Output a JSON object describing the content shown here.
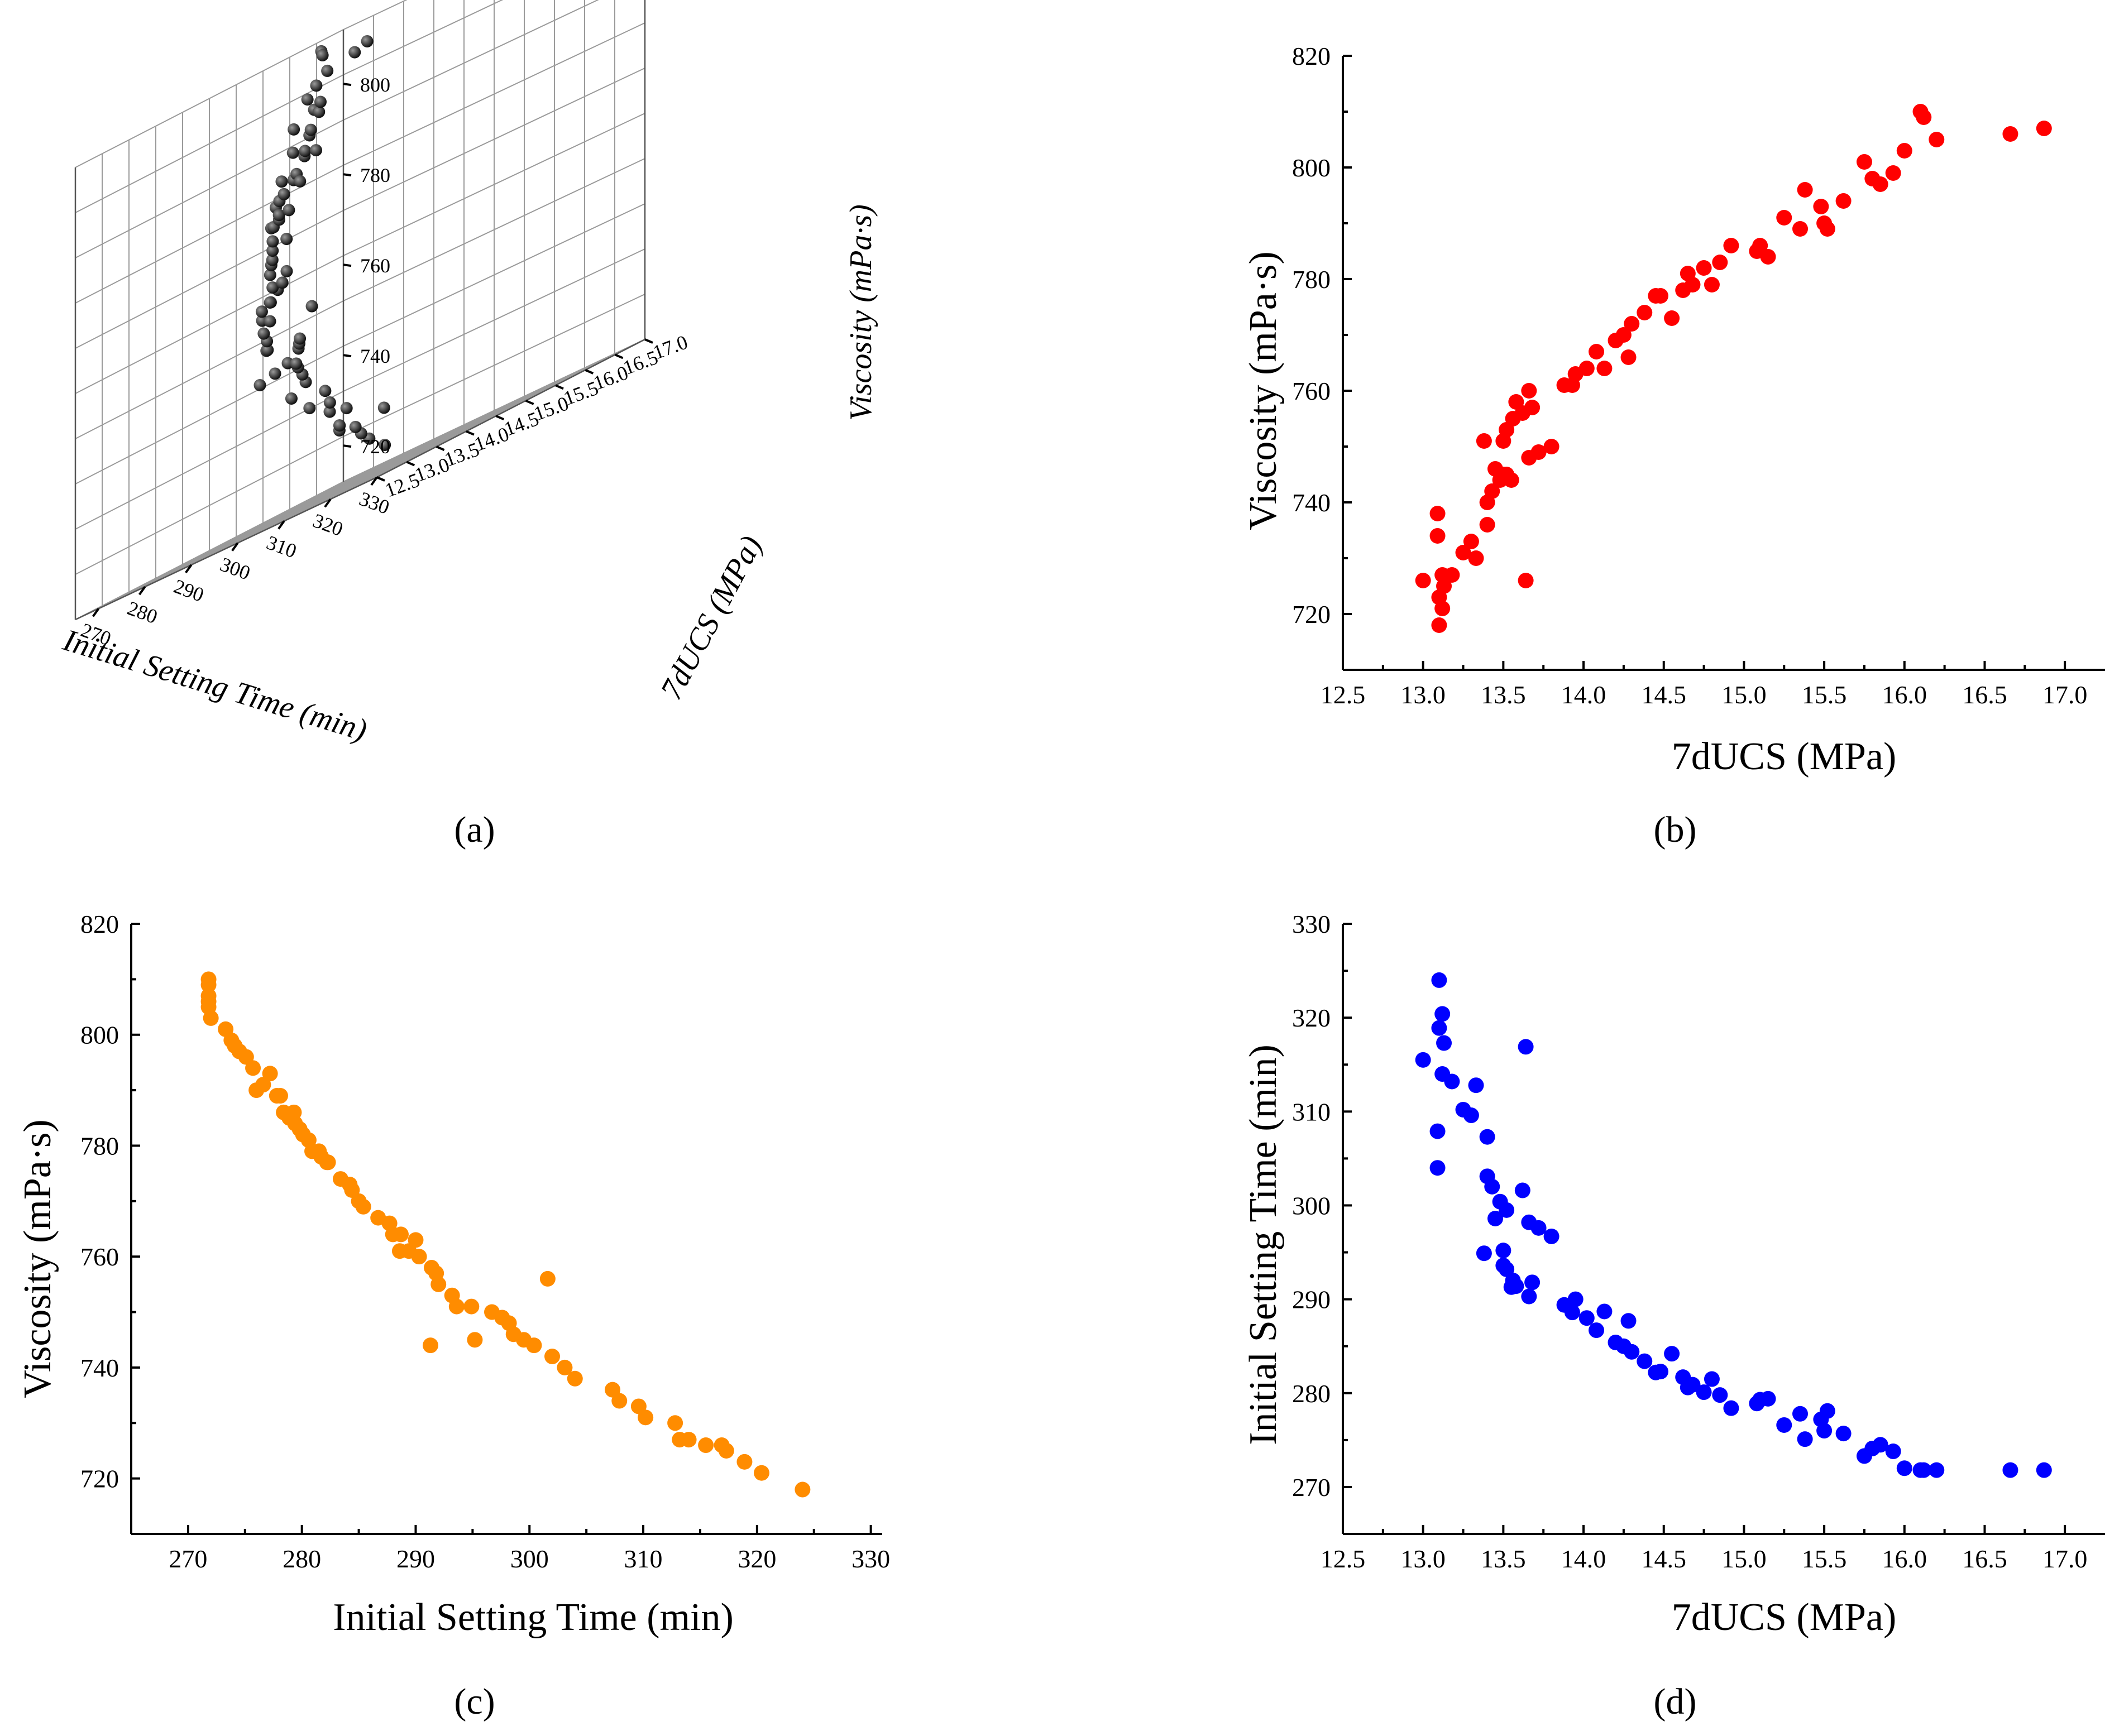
{
  "panel_labels": {
    "a": "(a)",
    "b": "(b)",
    "c": "(c)",
    "d": "(d)"
  },
  "chart_data": [
    {
      "id": "a",
      "type": "scatter3d",
      "title": "",
      "xlabel": "Initial Setting Time (min)",
      "ylabel": "7dUCS (MPa)",
      "zlabel": "Viscosity (mPa·s)",
      "xlim": [
        265,
        330
      ],
      "ylim": [
        12.5,
        17.0
      ],
      "zlim": [
        712,
        812
      ],
      "xticks": [
        330,
        320,
        310,
        300,
        290,
        280,
        270
      ],
      "yticks": [
        "12.5",
        "13.0",
        "13.5",
        "14.0",
        "14.5",
        "15.0",
        "15.5",
        "16.0",
        "16.5",
        "17.0"
      ],
      "zticks": [
        720,
        740,
        760,
        780,
        800
      ],
      "color": "#111111",
      "points_ref": "dataset"
    },
    {
      "id": "b",
      "type": "scatter",
      "xlabel": "7dUCS (MPa)",
      "ylabel": "Viscosity (mPa·s)",
      "xlim": [
        12.5,
        17.25
      ],
      "ylim": [
        710,
        820
      ],
      "xticks": [
        "12.5",
        "13.0",
        "13.5",
        "14.0",
        "14.5",
        "15.0",
        "15.5",
        "16.0",
        "16.5",
        "17.0"
      ],
      "yticks": [
        "720",
        "740",
        "760",
        "780",
        "800",
        "820"
      ],
      "color": "#ff0000"
    },
    {
      "id": "c",
      "type": "scatter",
      "xlabel": "Initial Setting Time (min)",
      "ylabel": "Viscosity (mPa·s)",
      "xlim": [
        265,
        331
      ],
      "ylim": [
        710,
        820
      ],
      "xticks": [
        "270",
        "280",
        "290",
        "300",
        "310",
        "320",
        "330"
      ],
      "yticks": [
        "720",
        "740",
        "760",
        "780",
        "800",
        "820"
      ],
      "color": "#ff8c00"
    },
    {
      "id": "d",
      "type": "scatter",
      "xlabel": "7dUCS (MPa)",
      "ylabel": "Initial Setting Time (min)",
      "xlim": [
        12.5,
        17.25
      ],
      "ylim": [
        265,
        330
      ],
      "xticks": [
        "12.5",
        "13.0",
        "13.5",
        "14.0",
        "14.5",
        "15.0",
        "15.5",
        "16.0",
        "16.5",
        "17.0"
      ],
      "yticks": [
        "270",
        "280",
        "290",
        "300",
        "310",
        "320",
        "330"
      ],
      "color": "#0000ff"
    }
  ],
  "dataset": {
    "fields": [
      "ucs_mpa",
      "setting_time_min",
      "viscosity_mpa_s"
    ],
    "points": [
      [
        13.0,
        315.5,
        726
      ],
      [
        13.1,
        324.0,
        718
      ],
      [
        13.12,
        320.4,
        721
      ],
      [
        13.1,
        318.9,
        723
      ],
      [
        13.13,
        317.3,
        725
      ],
      [
        13.12,
        314.0,
        727
      ],
      [
        13.18,
        313.2,
        727
      ],
      [
        13.09,
        307.9,
        734
      ],
      [
        13.09,
        304.0,
        738
      ],
      [
        13.25,
        310.2,
        731
      ],
      [
        13.3,
        309.6,
        733
      ],
      [
        13.33,
        312.8,
        730
      ],
      [
        13.64,
        316.9,
        726
      ],
      [
        13.4,
        307.3,
        736
      ],
      [
        13.4,
        303.1,
        740
      ],
      [
        13.43,
        302.0,
        742
      ],
      [
        13.45,
        298.6,
        746
      ],
      [
        13.48,
        300.4,
        744
      ],
      [
        13.5,
        295.2,
        745
      ],
      [
        13.52,
        299.5,
        745
      ],
      [
        13.55,
        291.3,
        744
      ],
      [
        13.38,
        294.9,
        751
      ],
      [
        13.5,
        293.6,
        751
      ],
      [
        13.52,
        293.2,
        753
      ],
      [
        13.56,
        292.0,
        755
      ],
      [
        13.58,
        291.4,
        758
      ],
      [
        13.62,
        301.6,
        756
      ],
      [
        13.66,
        290.3,
        760
      ],
      [
        13.68,
        291.8,
        757
      ],
      [
        13.66,
        298.2,
        748
      ],
      [
        13.72,
        297.6,
        749
      ],
      [
        13.8,
        296.7,
        750
      ],
      [
        13.88,
        289.4,
        761
      ],
      [
        13.93,
        288.6,
        761
      ],
      [
        13.95,
        290.0,
        763
      ],
      [
        14.02,
        288.0,
        764
      ],
      [
        14.08,
        286.7,
        767
      ],
      [
        14.13,
        288.7,
        764
      ],
      [
        14.2,
        285.4,
        769
      ],
      [
        14.25,
        285.0,
        770
      ],
      [
        14.3,
        284.4,
        772
      ],
      [
        14.28,
        287.7,
        766
      ],
      [
        14.38,
        283.4,
        774
      ],
      [
        14.45,
        282.2,
        777
      ],
      [
        14.48,
        282.3,
        777
      ],
      [
        14.55,
        284.2,
        773
      ],
      [
        14.62,
        281.7,
        778
      ],
      [
        14.65,
        280.6,
        781
      ],
      [
        14.68,
        280.9,
        779
      ],
      [
        14.75,
        280.1,
        782
      ],
      [
        14.8,
        281.5,
        779
      ],
      [
        14.85,
        279.8,
        783
      ],
      [
        14.92,
        278.4,
        786
      ],
      [
        15.08,
        278.9,
        785
      ],
      [
        15.1,
        279.3,
        786
      ],
      [
        15.15,
        279.4,
        784
      ],
      [
        15.25,
        276.6,
        791
      ],
      [
        15.35,
        277.8,
        789
      ],
      [
        15.38,
        275.1,
        796
      ],
      [
        15.48,
        277.2,
        793
      ],
      [
        15.5,
        276.0,
        790
      ],
      [
        15.52,
        278.1,
        789
      ],
      [
        15.62,
        275.7,
        794
      ],
      [
        15.75,
        273.3,
        801
      ],
      [
        15.8,
        274.1,
        798
      ],
      [
        15.85,
        274.5,
        797
      ],
      [
        15.93,
        273.8,
        799
      ],
      [
        16.0,
        272.0,
        803
      ],
      [
        16.1,
        271.8,
        810
      ],
      [
        16.12,
        271.8,
        809
      ],
      [
        16.2,
        271.8,
        805
      ],
      [
        16.66,
        271.8,
        806
      ],
      [
        16.87,
        271.8,
        807
      ]
    ]
  }
}
